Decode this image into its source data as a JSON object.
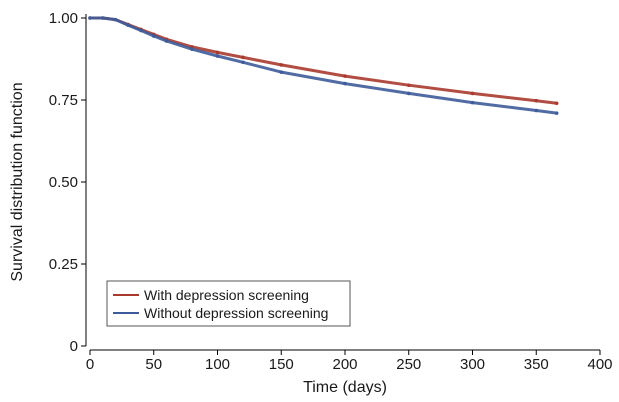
{
  "chart_data": {
    "type": "line",
    "title": "",
    "xlabel": "Time (days)",
    "ylabel": "Survival distribution function",
    "xlim": [
      0,
      400
    ],
    "ylim": [
      0,
      1.0
    ],
    "x_ticks": [
      "0",
      "50",
      "100",
      "150",
      "200",
      "250",
      "300",
      "350",
      "400"
    ],
    "y_ticks": [
      "0",
      "0.25",
      "0.50",
      "0.75",
      "1.00"
    ],
    "grid": false,
    "legend_position": "bottom-left",
    "series": [
      {
        "name": "With depression screening",
        "color": "#a93a2e",
        "x": [
          0,
          10,
          20,
          30,
          40,
          50,
          60,
          80,
          100,
          120,
          150,
          200,
          250,
          300,
          350,
          366
        ],
        "y": [
          1.0,
          1.0,
          0.995,
          0.98,
          0.965,
          0.95,
          0.935,
          0.912,
          0.895,
          0.88,
          0.857,
          0.823,
          0.795,
          0.77,
          0.748,
          0.74
        ]
      },
      {
        "name": "Without depression screening",
        "color": "#3e5c9a",
        "x": [
          0,
          10,
          20,
          30,
          40,
          50,
          60,
          80,
          100,
          120,
          150,
          200,
          250,
          300,
          350,
          366
        ],
        "y": [
          1.0,
          1.0,
          0.995,
          0.978,
          0.962,
          0.945,
          0.93,
          0.905,
          0.884,
          0.865,
          0.835,
          0.8,
          0.77,
          0.742,
          0.718,
          0.71
        ]
      }
    ]
  }
}
